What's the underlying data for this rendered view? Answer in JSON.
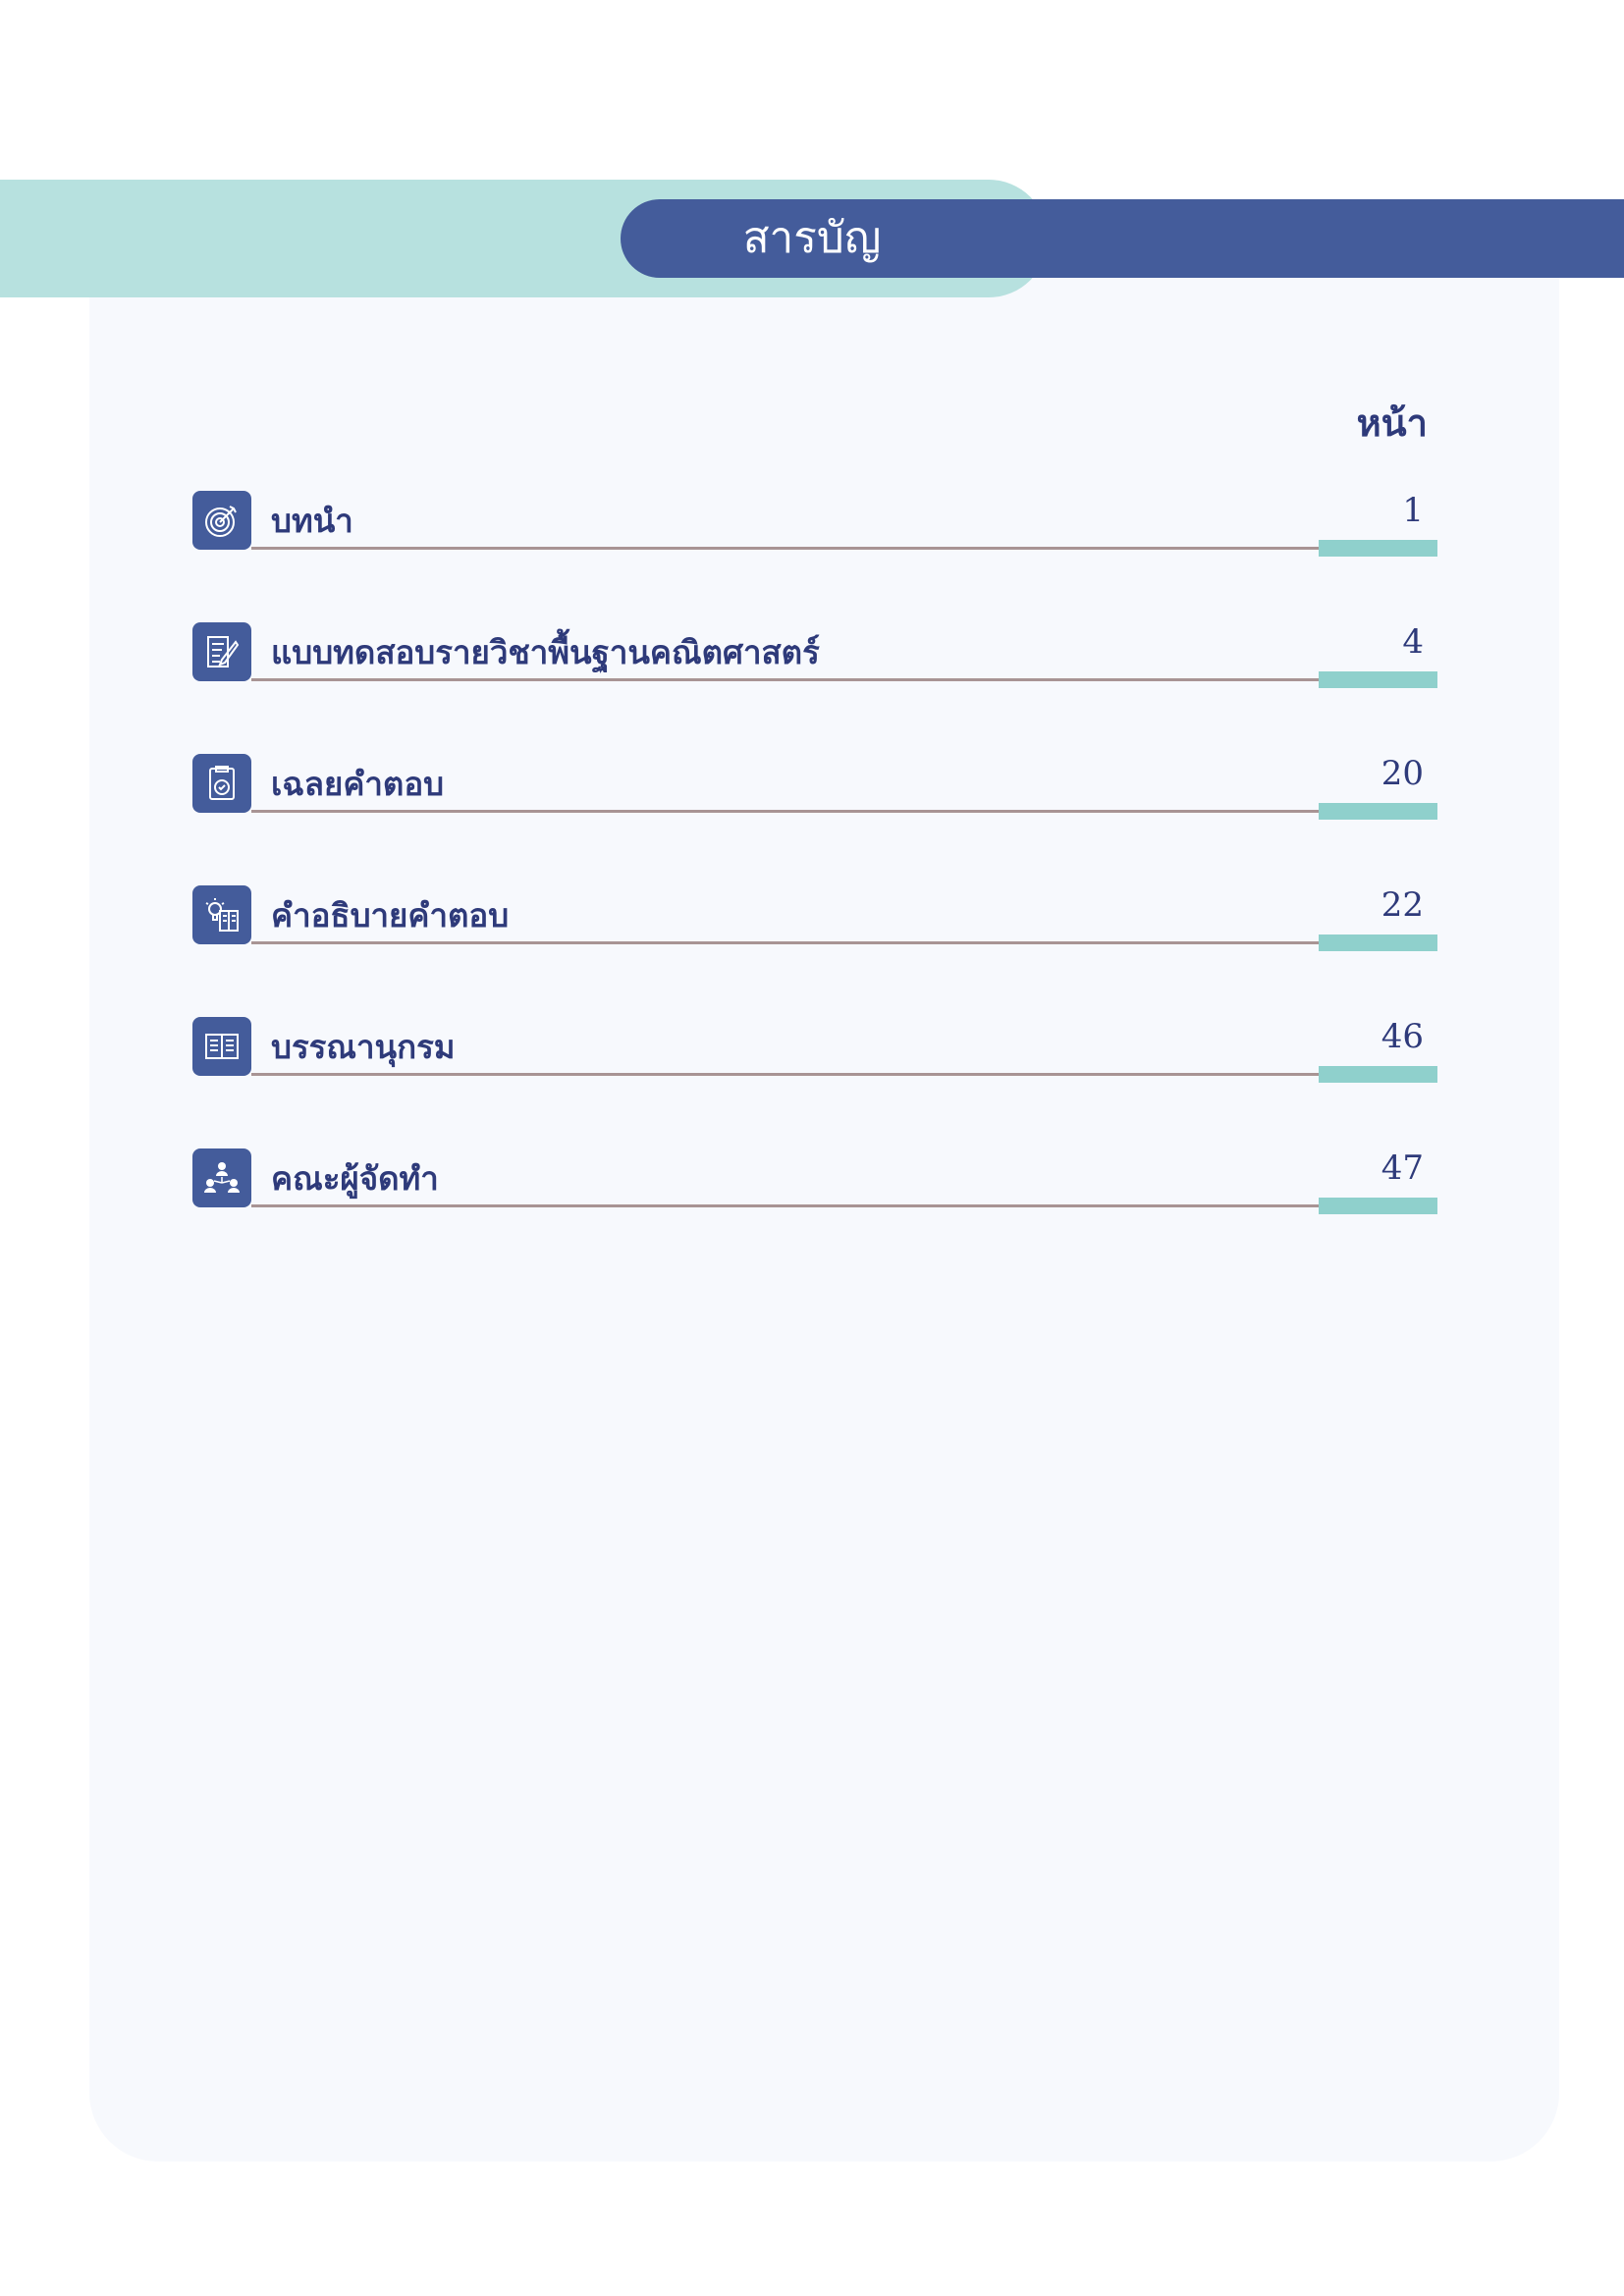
{
  "header": {
    "title": "สารบัญ"
  },
  "colors": {
    "accent_blue": "#445c9b",
    "accent_teal": "#b7e1df",
    "text": "#2e3a7a"
  },
  "page_column_label": "หน้า",
  "entries": [
    {
      "label": "บทนำ",
      "page": "1",
      "icon": "target-icon"
    },
    {
      "label": "แบบทดสอบรายวิชาพื้นฐานคณิตศาสตร์",
      "page": "4",
      "icon": "document-edit-icon"
    },
    {
      "label": "เฉลยคำตอบ",
      "page": "20",
      "icon": "clipboard-check-icon"
    },
    {
      "label": "คำอธิบายคำตอบ",
      "page": "22",
      "icon": "lightbulb-book-icon"
    },
    {
      "label": "บรรณานุกรม",
      "page": "46",
      "icon": "open-book-icon"
    },
    {
      "label": "คณะผู้จัดทำ",
      "page": "47",
      "icon": "team-icon"
    }
  ]
}
